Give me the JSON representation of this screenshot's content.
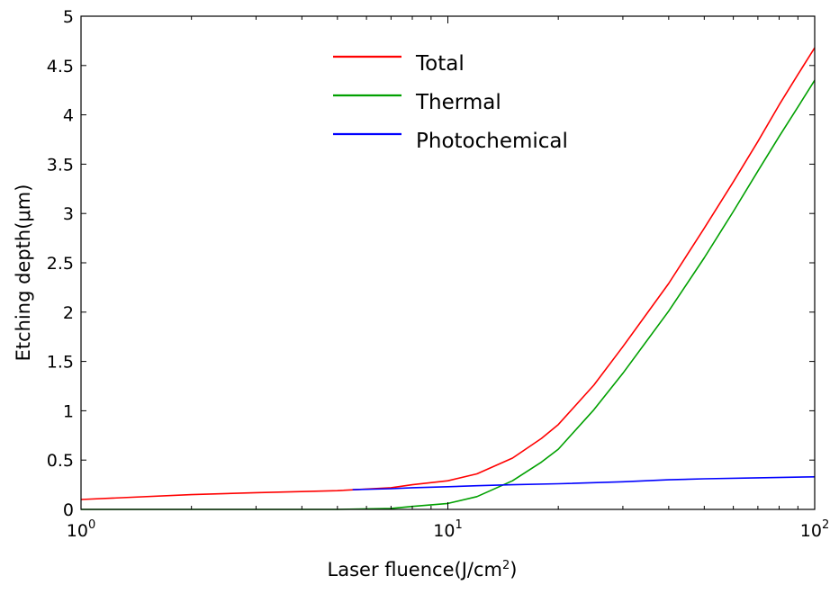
{
  "chart_data": {
    "type": "line",
    "title": "",
    "xlabel_main": "Laser fluence(J/cm",
    "xlabel_sup": "2",
    "xlabel_close": ")",
    "ylabel": "Etching depth(μm)",
    "x_scale": "log",
    "xlim": [
      1,
      100
    ],
    "ylim": [
      0,
      5
    ],
    "grid": false,
    "legend_position": "top-center",
    "x_ticks": [
      {
        "value": 1,
        "base": "10",
        "exp": "0"
      },
      {
        "value": 10,
        "base": "10",
        "exp": "1"
      },
      {
        "value": 100,
        "base": "10",
        "exp": "2"
      }
    ],
    "y_ticks": [
      "0",
      "0.5",
      "1",
      "1.5",
      "2",
      "2.5",
      "3",
      "3.5",
      "4",
      "4.5",
      "5"
    ],
    "series": [
      {
        "name": "Total",
        "color": "#ff0000",
        "x": [
          1,
          2,
          3,
          5,
          7,
          8,
          10,
          12,
          15,
          18,
          20,
          25,
          30,
          40,
          50,
          60,
          70,
          80,
          90,
          100
        ],
        "y": [
          0.1,
          0.15,
          0.17,
          0.19,
          0.22,
          0.25,
          0.29,
          0.36,
          0.52,
          0.72,
          0.86,
          1.26,
          1.65,
          2.29,
          2.85,
          3.32,
          3.73,
          4.1,
          4.41,
          4.68
        ]
      },
      {
        "name": "Thermal",
        "color": "#00a000",
        "x": [
          1,
          5,
          7,
          8,
          10,
          12,
          15,
          18,
          20,
          25,
          30,
          40,
          50,
          60,
          70,
          80,
          90,
          100
        ],
        "y": [
          0.0,
          0.0,
          0.01,
          0.03,
          0.06,
          0.13,
          0.29,
          0.48,
          0.61,
          1.01,
          1.38,
          2.01,
          2.55,
          3.02,
          3.43,
          3.78,
          4.08,
          4.35
        ]
      },
      {
        "name": "Photochemical",
        "color": "#0000ff",
        "x": [
          5.5,
          7,
          8,
          10,
          12,
          15,
          20,
          30,
          40,
          50,
          70,
          100
        ],
        "y": [
          0.2,
          0.21,
          0.22,
          0.23,
          0.24,
          0.25,
          0.26,
          0.28,
          0.3,
          0.31,
          0.32,
          0.33
        ]
      }
    ]
  }
}
